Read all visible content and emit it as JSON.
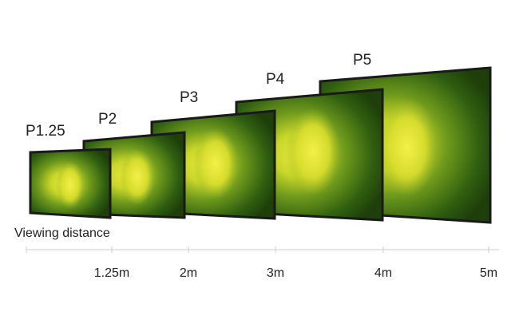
{
  "screens": [
    {
      "label": "P1.25"
    },
    {
      "label": "P2"
    },
    {
      "label": "P3"
    },
    {
      "label": "P4"
    },
    {
      "label": "P5"
    }
  ],
  "axis_title": "Viewing distance",
  "distances": [
    "1.25m",
    "2m",
    "3m",
    "4m",
    "5m"
  ]
}
